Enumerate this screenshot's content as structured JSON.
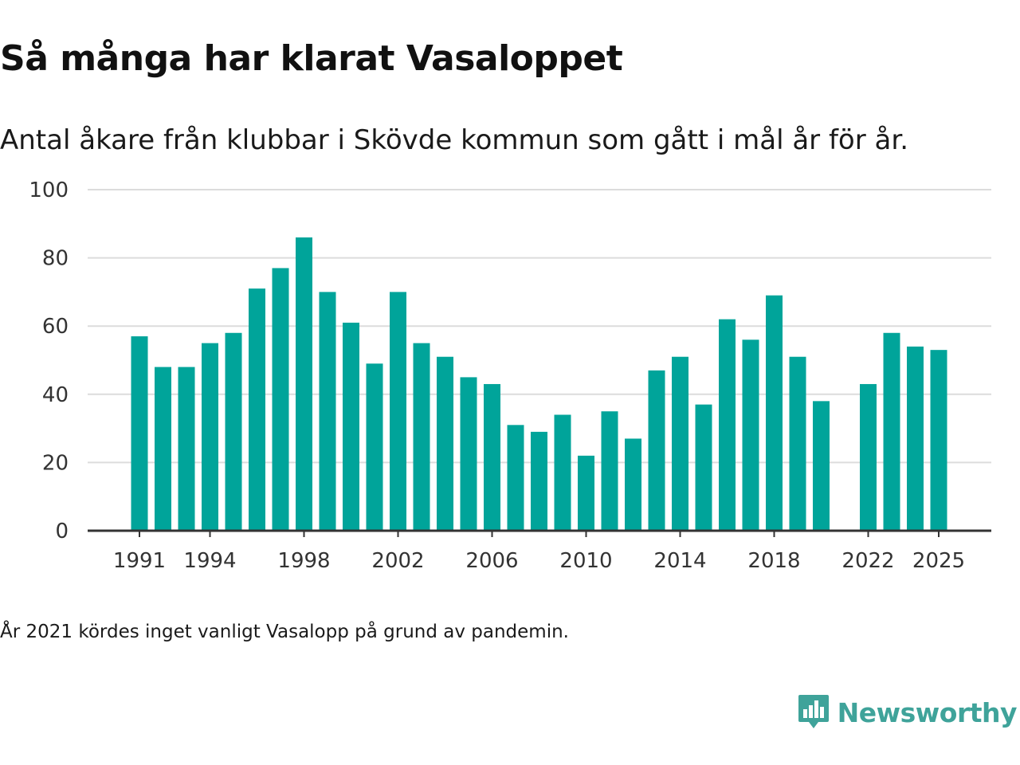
{
  "chart_data": {
    "type": "bar",
    "title": "Så många har klarat Vasaloppet",
    "subtitle": "Antal åkare från klubbar i Skövde kommun som gått i mål år för år.",
    "xlabel": "",
    "ylabel": "",
    "ylim": [
      0,
      100
    ],
    "yticks": [
      0,
      20,
      40,
      60,
      80,
      100
    ],
    "xticks": [
      1991,
      1994,
      1998,
      2002,
      2006,
      2010,
      2014,
      2018,
      2022,
      2025
    ],
    "categories": [
      1991,
      1992,
      1993,
      1994,
      1995,
      1996,
      1997,
      1998,
      1999,
      2000,
      2001,
      2002,
      2003,
      2004,
      2005,
      2006,
      2007,
      2008,
      2009,
      2010,
      2011,
      2012,
      2013,
      2014,
      2015,
      2016,
      2017,
      2018,
      2019,
      2020,
      2021,
      2022,
      2023,
      2024,
      2025
    ],
    "values": [
      57,
      48,
      48,
      55,
      58,
      71,
      77,
      86,
      70,
      61,
      49,
      70,
      55,
      51,
      45,
      43,
      31,
      29,
      34,
      22,
      35,
      27,
      47,
      51,
      37,
      62,
      56,
      69,
      51,
      38,
      null,
      43,
      58,
      54,
      53
    ],
    "bar_color": "#00a49a",
    "grid": true,
    "legend": "none"
  },
  "footnote": "År 2021 kördes inget vanligt Vasalopp på grund av pandemin.",
  "brand": {
    "name": "Newsworthy",
    "icon": "newsworthy-logo-icon",
    "color": "#3fa39a"
  }
}
